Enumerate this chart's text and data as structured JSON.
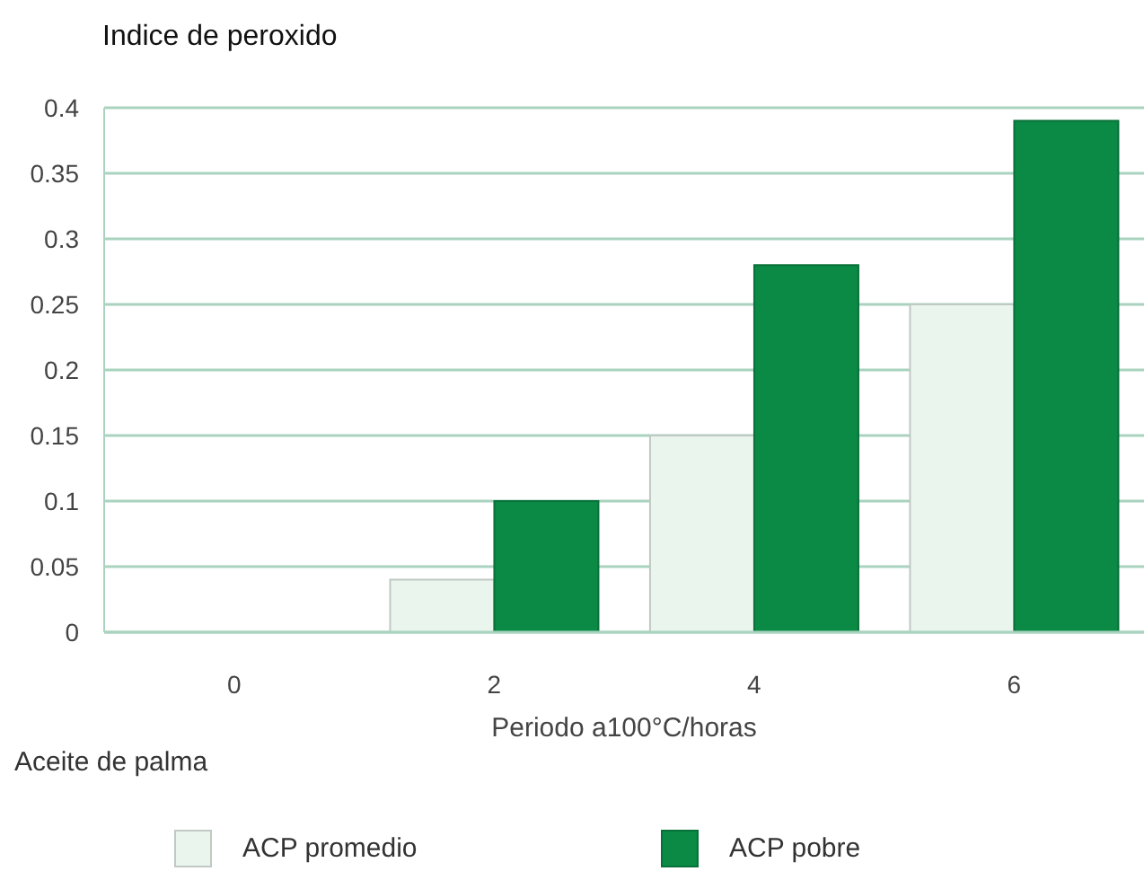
{
  "chart_data": {
    "type": "bar",
    "ylabel": "Indice de peroxido",
    "xlabel": "Periodo a100°C/horas",
    "legend_title": "Aceite de palma",
    "categories": [
      "0",
      "2",
      "4",
      "6"
    ],
    "series": [
      {
        "name": "ACP promedio",
        "color": "#eaf5ee",
        "values": [
          0,
          0.04,
          0.15,
          0.25
        ]
      },
      {
        "name": "ACP pobre",
        "color": "#0a8a45",
        "values": [
          0,
          0.1,
          0.28,
          0.39
        ]
      }
    ],
    "ylim": [
      0,
      0.4
    ],
    "yticks": [
      0,
      0.05,
      0.1,
      0.15,
      0.2,
      0.25,
      0.3,
      0.35,
      0.4
    ],
    "grid": "y",
    "legend": "bottom"
  }
}
